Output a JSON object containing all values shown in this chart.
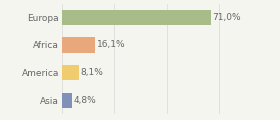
{
  "categories": [
    "Europa",
    "Africa",
    "America",
    "Asia"
  ],
  "values": [
    71.0,
    16.1,
    8.1,
    4.8
  ],
  "labels": [
    "71,0%",
    "16,1%",
    "8,1%",
    "4,8%"
  ],
  "bar_colors": [
    "#a8bc8a",
    "#e8a87c",
    "#f0cc6e",
    "#8090b8"
  ],
  "background_color": "#f5f5f0",
  "grid_color": "#d8d8d8",
  "text_color": "#666666",
  "xlim": [
    0,
    100
  ],
  "bar_height": 0.55,
  "label_fontsize": 6.5,
  "category_fontsize": 6.5,
  "grid_ticks": [
    0,
    25,
    50,
    75,
    100
  ]
}
